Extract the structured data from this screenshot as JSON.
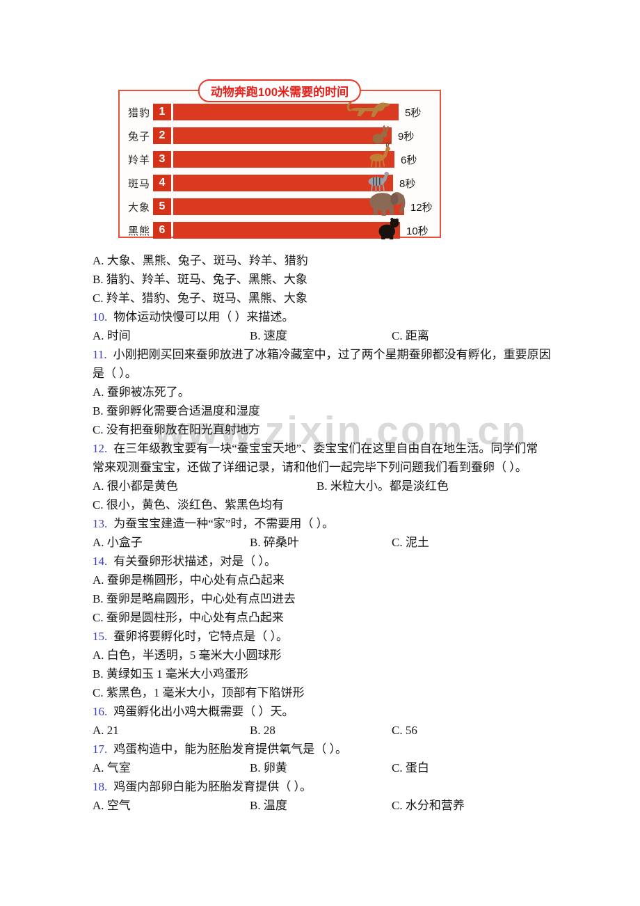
{
  "watermark": "www.zixin.com.cn",
  "chart_data": {
    "type": "bar",
    "title": "动物奔跑100米需要的时间",
    "orientation": "horizontal",
    "unit": "秒",
    "categories": [
      "猎豹",
      "兔子",
      "羚羊",
      "斑马",
      "大象",
      "黑熊"
    ],
    "values": [
      5,
      9,
      6,
      8,
      12,
      10
    ],
    "ranks": [
      "1",
      "2",
      "3",
      "4",
      "5",
      "6"
    ],
    "time_labels": [
      "5秒",
      "9秒",
      "6秒",
      "8秒",
      "12秒",
      "10秒"
    ],
    "animals": [
      "cheetah",
      "rabbit",
      "antelope",
      "zebra",
      "elephant",
      "bear"
    ],
    "animal_colors": {
      "cheetah": "#b5813c",
      "rabbit": "#9c6b42",
      "antelope": "#c07f35",
      "zebra": "#9aa0a8",
      "elephant": "#8a6a55",
      "bear": "#17120e"
    },
    "bar_color": "#da3a20",
    "accent_color": "#e8382a",
    "legend_position": "none",
    "grid": false
  },
  "questions": {
    "lines": [
      {
        "kind": "opt-full",
        "text": "A. 大象、黑熊、兔子、斑马、羚羊、猎豹"
      },
      {
        "kind": "opt-full",
        "text": "B. 猎豹、羚羊、斑马、兔子、黑熊、大象"
      },
      {
        "kind": "opt-full",
        "text": "C. 羚羊、猎豹、兔子、斑马、黑熊、大象"
      },
      {
        "kind": "q",
        "num": "10.",
        "text": "物体运动快慢可以用（  ）来描述。"
      },
      {
        "kind": "opts3",
        "items": [
          "A. 时间",
          "B. 速度",
          "C. 距离"
        ]
      },
      {
        "kind": "q",
        "num": "11.",
        "text": "小刚把刚买回来蚕卵放进了冰箱冷藏室中，过了两个星期蚕卵都没有孵化，重要原因"
      },
      {
        "kind": "cont",
        "text": "是（    ）。"
      },
      {
        "kind": "opt-full",
        "text": "A. 蚕卵被冻死了。"
      },
      {
        "kind": "opt-full",
        "text": "B. 蚕卵孵化需要合适温度和湿度"
      },
      {
        "kind": "opt-full",
        "text": "C. 没有把蚕卵放在阳光直射地方"
      },
      {
        "kind": "q",
        "num": "12.",
        "text": "在三年级教宝要有一块“蚕宝宝天地”、委宝宝们在这里自由自在地生活。同学们常"
      },
      {
        "kind": "cont",
        "text": "常来观测蚕宝宝，还做了详细记录，请和他们一起完毕下列问题我们看到蚕卵（    ）。"
      },
      {
        "kind": "opts2w",
        "items": [
          "A. 很小都是黄色",
          "B. 米粒大小。都是淡红色"
        ]
      },
      {
        "kind": "opt-full",
        "text": "C. 很小，黄色、淡红色、紫黑色均有"
      },
      {
        "kind": "q",
        "num": "13.",
        "text": "为蚕宝宝建造一种“家”时，不需要用（    ）。"
      },
      {
        "kind": "opts3",
        "items": [
          "A. 小盒子",
          "B. 碎桑叶",
          "C. 泥土"
        ]
      },
      {
        "kind": "q",
        "num": "14.",
        "text": "有关蚕卵形状描述，对是（    ）。"
      },
      {
        "kind": "opt-full",
        "text": "A. 蚕卵是椭圆形，中心处有点凸起来"
      },
      {
        "kind": "opt-full",
        "text": "B. 蚕卵是略扁圆形，中心处有点凹进去"
      },
      {
        "kind": "opt-full",
        "text": "C. 蚕卵是圆柱形，中心处有点凸起来"
      },
      {
        "kind": "q",
        "num": "15.",
        "text": "蚕卵将要孵化时，它特点是（    ）。"
      },
      {
        "kind": "opt-full",
        "text": "A. 白色，半透明，5 毫米大小圆球形"
      },
      {
        "kind": "opt-full",
        "text": "B. 黄绿如玉 1 毫米大小鸡蛋形"
      },
      {
        "kind": "opt-full",
        "text": "C. 紫黑色，1 毫米大小，顶部有下陷饼形"
      },
      {
        "kind": "q",
        "num": "16.",
        "text": "鸡蛋孵化出小鸡大概需要（    ）天。"
      },
      {
        "kind": "opts3",
        "items": [
          "A. 21",
          "B. 28",
          "C. 56"
        ]
      },
      {
        "kind": "q",
        "num": "17.",
        "text": "鸡蛋构造中，能为胚胎发育提供氧气是（    ）。"
      },
      {
        "kind": "opts3",
        "items": [
          "A. 气室",
          "B. 卵黄",
          "C. 蛋白"
        ]
      },
      {
        "kind": "q",
        "num": "18.",
        "text": "鸡蛋内部卵白能为胚胎发育提供（    ）。"
      },
      {
        "kind": "opts3",
        "items": [
          "A. 空气",
          "B. 温度",
          "C. 水分和营养"
        ]
      }
    ]
  }
}
